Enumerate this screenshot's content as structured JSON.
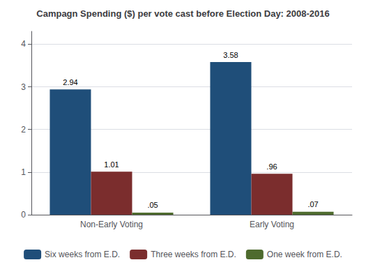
{
  "chart_data": {
    "type": "bar",
    "title": "Campagn Spending ($) per vote cast before Election Day: 2008-2016",
    "categories": [
      "Non-Early Voting",
      "Early Voting"
    ],
    "series": [
      {
        "name": "Six weeks from E.D.",
        "color": "#1F4E79",
        "values": [
          2.94,
          3.58
        ],
        "value_labels": [
          "2.94",
          "3.58"
        ]
      },
      {
        "name": "Three weeks from E.D.",
        "color": "#7B2D2D",
        "values": [
          1.01,
          0.96
        ],
        "value_labels": [
          "1.01",
          ".96"
        ]
      },
      {
        "name": "One week from E.D.",
        "color": "#4E6B2E",
        "values": [
          0.05,
          0.07
        ],
        "value_labels": [
          ".05",
          ".07"
        ]
      }
    ],
    "ylim": [
      0,
      4.3
    ],
    "yticks": [
      0,
      1,
      2,
      3,
      4
    ],
    "grid": true,
    "legend": "bottom",
    "data_labels": true
  }
}
